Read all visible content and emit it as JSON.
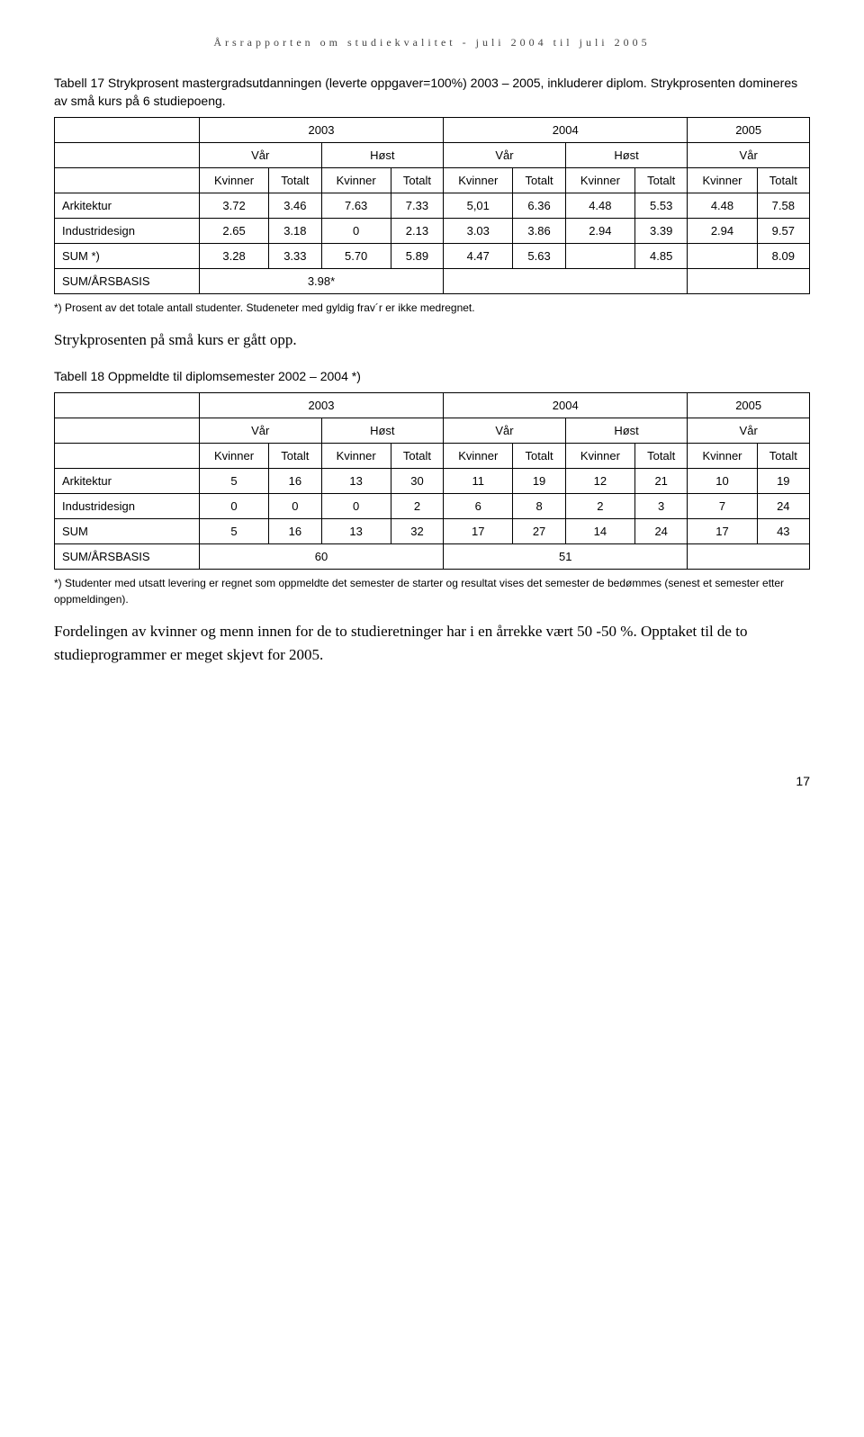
{
  "header": "Årsrapporten om studiekvalitet - juli 2004 til juli 2005",
  "table17": {
    "caption_a": "Tabell 17 Strykprosent",
    "caption_b": "mastergradsutdanningen (leverte oppgaver=100%) 2003 – 2005, inkluderer diplom. Strykprosenten domineres av små kurs på 6 studiepoeng.",
    "years": [
      "2003",
      "2004",
      "2005"
    ],
    "seasons": [
      "Vår",
      "Høst",
      "Vår",
      "Høst",
      "Vår"
    ],
    "subcols": [
      "Kvinner",
      "Totalt",
      "Kvinner",
      "Totalt",
      "Kvinner",
      "Totalt",
      "Kvinner",
      "Totalt",
      "Kvinner",
      "Totalt"
    ],
    "rows": [
      {
        "label": "Arkitektur",
        "vals": [
          "3.72",
          "3.46",
          "7.63",
          "7.33",
          "5,01",
          "6.36",
          "4.48",
          "5.53",
          "4.48",
          "7.58"
        ]
      },
      {
        "label": "Industridesign",
        "vals": [
          "2.65",
          "3.18",
          "0",
          "2.13",
          "3.03",
          "3.86",
          "2.94",
          "3.39",
          "2.94",
          "9.57"
        ]
      },
      {
        "label": "SUM *)",
        "vals": [
          "3.28",
          "3.33",
          "5.70",
          "5.89",
          "4.47",
          "5.63",
          "",
          "4.85",
          "",
          "8.09"
        ]
      }
    ],
    "sumrow_label": "SUM/ÅRSBASIS",
    "sumrow_val": "3.98*",
    "footnote": "*) Prosent av det totale antall studenter. Studeneter med gyldig frav´r er ikke medregnet."
  },
  "midtext": "Strykprosenten på små kurs er gått opp.",
  "table18": {
    "caption": "Tabell 18 Oppmeldte til diplomsemester 2002 – 2004 *)",
    "years": [
      "2003",
      "2004",
      "2005"
    ],
    "seasons": [
      "Vår",
      "Høst",
      "Vår",
      "Høst",
      "Vår"
    ],
    "subcols": [
      "Kvinner",
      "Totalt",
      "Kvinner",
      "Totalt",
      "Kvinner",
      "Totalt",
      "Kvinner",
      "Totalt",
      "Kvinner",
      "Totalt"
    ],
    "rows": [
      {
        "label": "Arkitektur",
        "vals": [
          "5",
          "16",
          "13",
          "30",
          "11",
          "19",
          "12",
          "21",
          "10",
          "19"
        ]
      },
      {
        "label": "Industridesign",
        "vals": [
          "0",
          "0",
          "0",
          "2",
          "6",
          "8",
          "2",
          "3",
          "7",
          "24"
        ]
      },
      {
        "label": "SUM",
        "vals": [
          "5",
          "16",
          "13",
          "32",
          "17",
          "27",
          "14",
          "24",
          "17",
          "43"
        ]
      }
    ],
    "sumrow_label": "SUM/ÅRSBASIS",
    "sumrow_vals": [
      "60",
      "51"
    ],
    "footnote": "*) Studenter med utsatt levering er regnet som oppmeldte det semester de starter og resultat vises det semester de bedømmes (senest et semester etter oppmeldingen)."
  },
  "bottomtext": "Fordelingen av kvinner og menn innen for de to studieretninger har i en årrekke vært 50 -50 %. Opptaket til de to studieprogrammer er meget skjevt for 2005.",
  "page": "17"
}
